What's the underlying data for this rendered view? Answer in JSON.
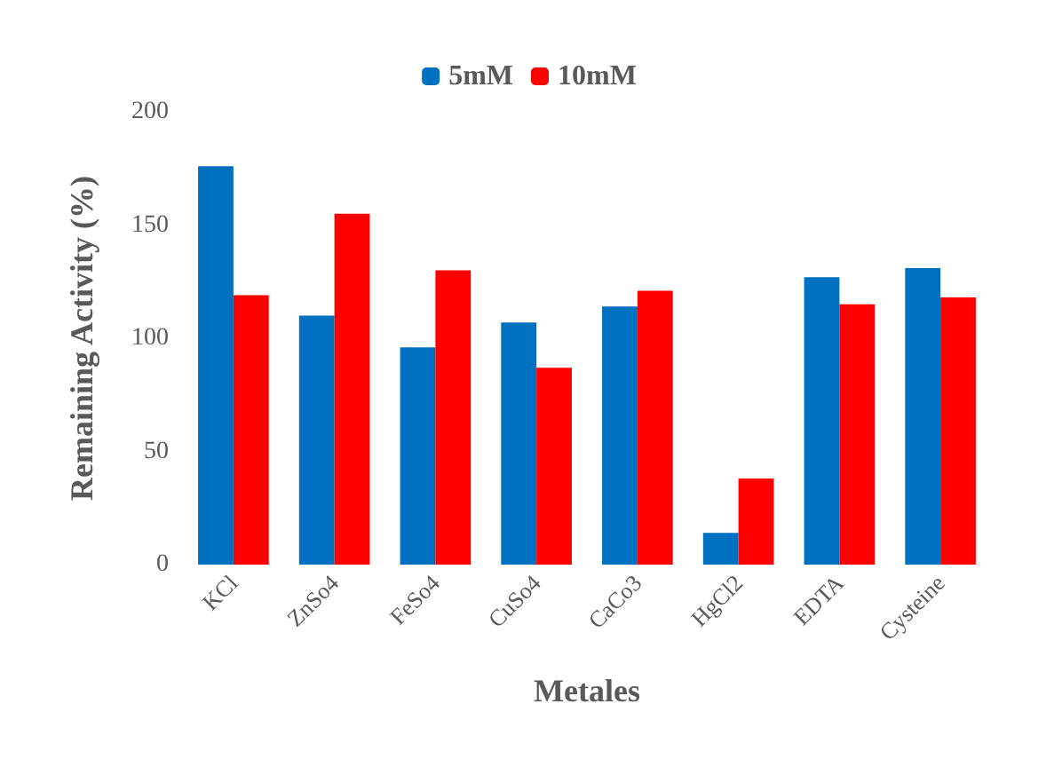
{
  "chart_data": {
    "type": "bar",
    "xlabel": "Metales",
    "ylabel": "Remaining Activity (%)",
    "categories": [
      "KCl",
      "ZnSo4",
      "FeSo4",
      "CuSo4",
      "CaCo3",
      "HgCl2",
      "EDTA",
      "Cysteine"
    ],
    "series": [
      {
        "name": "5mM",
        "color": "#0070c0",
        "values": [
          176,
          110,
          96,
          107,
          114,
          14,
          127,
          131
        ]
      },
      {
        "name": "10mM",
        "color": "#ff0000",
        "values": [
          119,
          155,
          130,
          87,
          121,
          38,
          115,
          118
        ]
      }
    ],
    "ylim": [
      0,
      200
    ],
    "yticks": [
      0,
      50,
      100,
      150,
      200
    ],
    "grid": false,
    "legend": "top"
  }
}
